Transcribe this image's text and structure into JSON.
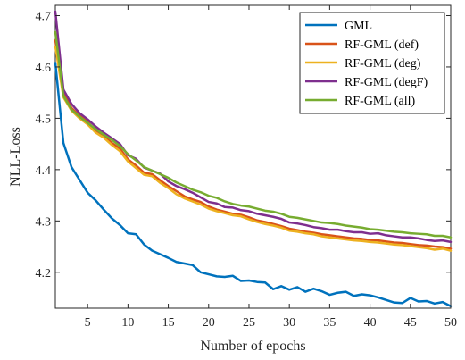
{
  "chart_data": {
    "type": "line",
    "xlabel": "Number of epochs",
    "ylabel": "NLL-Loss",
    "xlim": [
      1,
      50
    ],
    "ylim": [
      4.13,
      4.72
    ],
    "x_ticks": [
      5,
      10,
      15,
      20,
      25,
      30,
      35,
      40,
      45,
      50
    ],
    "y_ticks": [
      4.2,
      4.3,
      4.4,
      4.5,
      4.6,
      4.7
    ],
    "grid": false,
    "legend_position": "top-right",
    "x": [
      1,
      2,
      3,
      4,
      5,
      6,
      7,
      8,
      9,
      10,
      11,
      12,
      13,
      14,
      15,
      16,
      17,
      18,
      19,
      20,
      21,
      22,
      23,
      24,
      25,
      26,
      27,
      28,
      29,
      30,
      31,
      32,
      33,
      34,
      35,
      36,
      37,
      38,
      39,
      40,
      41,
      42,
      43,
      44,
      45,
      46,
      47,
      48,
      49,
      50
    ],
    "series": [
      {
        "name": "GML",
        "color": "#0072BD",
        "values": [
          4.608,
          4.452,
          4.405,
          4.38,
          4.355,
          4.34,
          4.322,
          4.305,
          4.292,
          4.276,
          4.274,
          4.254,
          4.242,
          4.235,
          4.228,
          4.22,
          4.217,
          4.214,
          4.2,
          4.196,
          4.192,
          4.191,
          4.193,
          4.183,
          4.184,
          4.181,
          4.18,
          4.167,
          4.173,
          4.166,
          4.171,
          4.162,
          4.168,
          4.163,
          4.156,
          4.16,
          4.162,
          4.154,
          4.157,
          4.155,
          4.151,
          4.146,
          4.141,
          4.14,
          4.15,
          4.143,
          4.144,
          4.139,
          4.142,
          4.134
        ]
      },
      {
        "name": "RF-GML (def)",
        "color": "#D95319",
        "values": [
          4.652,
          4.548,
          4.52,
          4.505,
          4.493,
          4.476,
          4.465,
          4.452,
          4.441,
          4.42,
          4.408,
          4.394,
          4.391,
          4.379,
          4.368,
          4.358,
          4.348,
          4.342,
          4.337,
          4.328,
          4.322,
          4.318,
          4.314,
          4.312,
          4.307,
          4.301,
          4.298,
          4.294,
          4.29,
          4.285,
          4.282,
          4.279,
          4.277,
          4.274,
          4.272,
          4.27,
          4.268,
          4.266,
          4.265,
          4.263,
          4.262,
          4.26,
          4.258,
          4.257,
          4.255,
          4.253,
          4.252,
          4.25,
          4.249,
          4.246
        ]
      },
      {
        "name": "RF-GML (deg)",
        "color": "#EDB120",
        "values": [
          4.64,
          4.541,
          4.515,
          4.5,
          4.488,
          4.472,
          4.462,
          4.448,
          4.436,
          4.416,
          4.403,
          4.39,
          4.387,
          4.374,
          4.364,
          4.352,
          4.344,
          4.338,
          4.332,
          4.324,
          4.319,
          4.315,
          4.311,
          4.309,
          4.303,
          4.298,
          4.294,
          4.291,
          4.287,
          4.281,
          4.279,
          4.276,
          4.274,
          4.27,
          4.268,
          4.266,
          4.264,
          4.262,
          4.261,
          4.259,
          4.258,
          4.256,
          4.254,
          4.253,
          4.251,
          4.249,
          4.247,
          4.244,
          4.246,
          4.242
        ]
      },
      {
        "name": "RF-GML (degF)",
        "color": "#7E2F8E",
        "values": [
          4.708,
          4.556,
          4.528,
          4.51,
          4.498,
          4.484,
          4.472,
          4.461,
          4.45,
          4.428,
          4.421,
          4.404,
          4.398,
          4.392,
          4.377,
          4.368,
          4.362,
          4.355,
          4.346,
          4.337,
          4.334,
          4.327,
          4.326,
          4.321,
          4.319,
          4.314,
          4.311,
          4.308,
          4.304,
          4.297,
          4.295,
          4.292,
          4.288,
          4.286,
          4.283,
          4.283,
          4.28,
          4.278,
          4.278,
          4.275,
          4.276,
          4.272,
          4.27,
          4.268,
          4.268,
          4.266,
          4.263,
          4.261,
          4.262,
          4.259
        ]
      },
      {
        "name": "RF-GML (all)",
        "color": "#77AC30",
        "values": [
          4.668,
          4.544,
          4.517,
          4.503,
          4.491,
          4.479,
          4.468,
          4.458,
          4.446,
          4.43,
          4.418,
          4.405,
          4.398,
          4.391,
          4.384,
          4.375,
          4.368,
          4.361,
          4.356,
          4.349,
          4.345,
          4.338,
          4.333,
          4.33,
          4.328,
          4.324,
          4.32,
          4.318,
          4.314,
          4.308,
          4.306,
          4.303,
          4.3,
          4.297,
          4.296,
          4.294,
          4.291,
          4.289,
          4.287,
          4.284,
          4.283,
          4.281,
          4.279,
          4.278,
          4.276,
          4.275,
          4.274,
          4.271,
          4.271,
          4.268
        ]
      }
    ]
  }
}
